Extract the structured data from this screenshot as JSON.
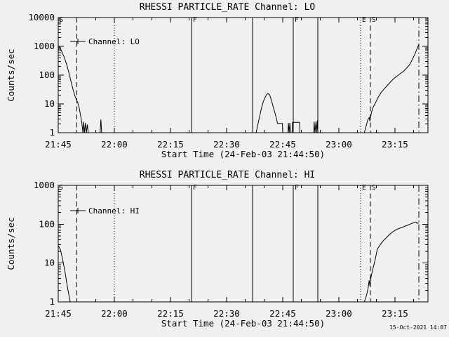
{
  "footer": {
    "timestamp": "15-Oct-2021 14:07"
  },
  "chart_data": [
    {
      "type": "line",
      "id": "lo",
      "title": "RHESSI PARTICLE_RATE Channel: LO",
      "xlabel": "Start Time (24-Feb-03 21:44:50)",
      "ylabel": "Counts/sec",
      "x_unit": "minutes after 21:45",
      "xlim_minutes": [
        0,
        98.8
      ],
      "ylim": [
        1,
        10000
      ],
      "yscale": "log",
      "grid": false,
      "xticks": [
        {
          "t": 0,
          "label": "21:45"
        },
        {
          "t": 15,
          "label": "22:00"
        },
        {
          "t": 30,
          "label": "22:15"
        },
        {
          "t": 45,
          "label": "22:30"
        },
        {
          "t": 60,
          "label": "22:45"
        },
        {
          "t": 75,
          "label": "23:00"
        },
        {
          "t": 90,
          "label": "23:15"
        }
      ],
      "ytick_labels": [
        "1",
        "10",
        "100",
        "1000",
        "10000"
      ],
      "legend_label": "Channel: LO",
      "corner_flag": "S",
      "event_lines": [
        {
          "t": 5.0,
          "time": "21:50",
          "style": "dashed",
          "label": ""
        },
        {
          "t": 15.0,
          "time": "22:00",
          "style": "dotted",
          "label": ""
        },
        {
          "t": 35.6,
          "time": "22:21",
          "style": "solid",
          "label": "F"
        },
        {
          "t": 51.9,
          "time": "22:37",
          "style": "solid",
          "label": ""
        },
        {
          "t": 62.8,
          "time": "22:48",
          "style": "solid",
          "label": "F"
        },
        {
          "t": 69.4,
          "time": "22:54",
          "style": "solid",
          "label": ""
        },
        {
          "t": 80.8,
          "time": "23:06",
          "style": "dotted",
          "label": "E"
        },
        {
          "t": 83.4,
          "time": "23:08",
          "style": "dashed",
          "label": "S"
        },
        {
          "t": 96.4,
          "time": "23:21",
          "style": "dashdot",
          "label": ""
        }
      ],
      "series": [
        {
          "name": "Channel: LO",
          "points": [
            [
              0,
              1050
            ],
            [
              0.5,
              900
            ],
            [
              1,
              640
            ],
            [
              1.6,
              420
            ],
            [
              2.2,
              250
            ],
            [
              2.8,
              130
            ],
            [
              3.4,
              62
            ],
            [
              4,
              30
            ],
            [
              4.6,
              17
            ],
            [
              5.1,
              12
            ],
            [
              5.5,
              8.5
            ],
            [
              5.9,
              4.5
            ],
            [
              6.3,
              2.2
            ],
            [
              6.6,
              1
            ],
            [
              6.8,
              2.4
            ],
            [
              7,
              1
            ],
            [
              7.3,
              2.2
            ],
            [
              7.5,
              1
            ],
            [
              7.8,
              1.9
            ],
            [
              8,
              1
            ],
            [
              11.2,
              1
            ],
            [
              11.4,
              2.9
            ],
            [
              11.6,
              1
            ],
            [
              52.9,
              1
            ],
            [
              53.3,
              1.8
            ],
            [
              53.8,
              3.5
            ],
            [
              54.3,
              7
            ],
            [
              54.8,
              12
            ],
            [
              55.3,
              17
            ],
            [
              55.7,
              21
            ],
            [
              56,
              23
            ],
            [
              56.5,
              21
            ],
            [
              57,
              13
            ],
            [
              57.5,
              7.5
            ],
            [
              58,
              4.5
            ],
            [
              58.4,
              2.8
            ],
            [
              58.6,
              2.1
            ],
            [
              59.9,
              2.1
            ],
            [
              60,
              1
            ],
            [
              61.4,
              1
            ],
            [
              61.5,
              2.2
            ],
            [
              61.7,
              1
            ],
            [
              61.9,
              2.2
            ],
            [
              62.1,
              1
            ],
            [
              62.5,
              1
            ],
            [
              62.6,
              2.3
            ],
            [
              64.5,
              2.3
            ],
            [
              64.6,
              1
            ],
            [
              68.3,
              1
            ],
            [
              68.4,
              2.4
            ],
            [
              68.6,
              1
            ],
            [
              68.9,
              2.5
            ],
            [
              69.1,
              1
            ],
            [
              69.3,
              2.7
            ],
            [
              69.4,
              1
            ],
            [
              81.8,
              1
            ],
            [
              82.3,
              1.7
            ],
            [
              82.7,
              2.7
            ],
            [
              83.1,
              3.4
            ],
            [
              83.3,
              2.5
            ],
            [
              83.7,
              5
            ],
            [
              84.2,
              8
            ],
            [
              84.8,
              11
            ],
            [
              85.5,
              17
            ],
            [
              86.3,
              25
            ],
            [
              87.1,
              33
            ],
            [
              87.9,
              43
            ],
            [
              88.6,
              54
            ],
            [
              89.4,
              70
            ],
            [
              90.1,
              84
            ],
            [
              90.9,
              100
            ],
            [
              91.6,
              118
            ],
            [
              92.4,
              140
            ],
            [
              93.1,
              175
            ],
            [
              93.9,
              230
            ],
            [
              94.6,
              340
            ],
            [
              95.3,
              530
            ],
            [
              95.9,
              830
            ],
            [
              96.4,
              1200
            ]
          ]
        }
      ]
    },
    {
      "type": "line",
      "id": "hi",
      "title": "RHESSI PARTICLE_RATE Channel: HI",
      "xlabel": "Start Time (24-Feb-03 21:44:50)",
      "ylabel": "Counts/sec",
      "x_unit": "minutes after 21:45",
      "xlim_minutes": [
        0,
        98.8
      ],
      "ylim": [
        1,
        1000
      ],
      "yscale": "log",
      "grid": false,
      "xticks": [
        {
          "t": 0,
          "label": "21:45"
        },
        {
          "t": 15,
          "label": "22:00"
        },
        {
          "t": 30,
          "label": "22:15"
        },
        {
          "t": 45,
          "label": "22:30"
        },
        {
          "t": 60,
          "label": "22:45"
        },
        {
          "t": 75,
          "label": "23:00"
        },
        {
          "t": 90,
          "label": "23:15"
        }
      ],
      "ytick_labels": [
        "1",
        "10",
        "100",
        "1000"
      ],
      "legend_label": "Channel: HI",
      "corner_flag": "S",
      "event_lines": [
        {
          "t": 5.0,
          "time": "21:50",
          "style": "dashed",
          "label": ""
        },
        {
          "t": 15.0,
          "time": "22:00",
          "style": "dotted",
          "label": ""
        },
        {
          "t": 35.6,
          "time": "22:21",
          "style": "solid",
          "label": "F"
        },
        {
          "t": 51.9,
          "time": "22:37",
          "style": "solid",
          "label": ""
        },
        {
          "t": 62.8,
          "time": "22:48",
          "style": "solid",
          "label": "F"
        },
        {
          "t": 69.4,
          "time": "22:54",
          "style": "solid",
          "label": ""
        },
        {
          "t": 80.8,
          "time": "23:06",
          "style": "dotted",
          "label": "E"
        },
        {
          "t": 83.4,
          "time": "23:08",
          "style": "dashed",
          "label": "S"
        },
        {
          "t": 96.4,
          "time": "23:21",
          "style": "dashdot",
          "label": ""
        }
      ],
      "series": [
        {
          "name": "Channel: HI",
          "points": [
            [
              0,
              28
            ],
            [
              0.6,
              22
            ],
            [
              1.2,
              12
            ],
            [
              1.8,
              6
            ],
            [
              2.4,
              2.6
            ],
            [
              2.9,
              1.4
            ],
            [
              3.2,
              1
            ],
            [
              81.8,
              1
            ],
            [
              82.4,
              1.5
            ],
            [
              82.8,
              2.2
            ],
            [
              83.1,
              3.6
            ],
            [
              83.3,
              2.6
            ],
            [
              83.6,
              4.4
            ],
            [
              84,
              6.6
            ],
            [
              84.6,
              11
            ],
            [
              85.3,
              23
            ],
            [
              86.1,
              30
            ],
            [
              86.8,
              37
            ],
            [
              87.6,
              44
            ],
            [
              88.5,
              54
            ],
            [
              89.4,
              64
            ],
            [
              90.4,
              73
            ],
            [
              91.3,
              79
            ],
            [
              92.3,
              86
            ],
            [
              93.2,
              93
            ],
            [
              94.1,
              101
            ],
            [
              95.1,
              110
            ],
            [
              95.6,
              114
            ],
            [
              96,
              105
            ],
            [
              96.4,
              110
            ]
          ]
        }
      ]
    }
  ]
}
